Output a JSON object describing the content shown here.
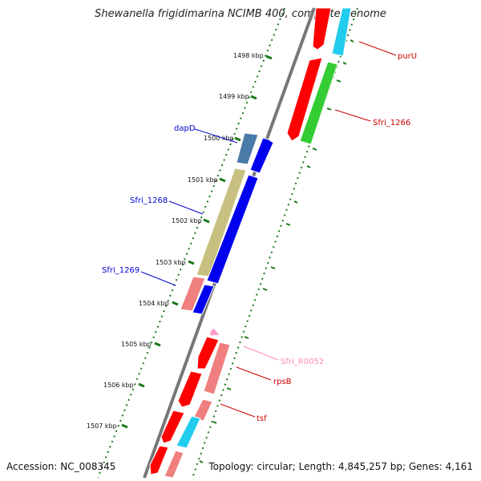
{
  "title": "Shewanella frigidimarina NCIMB 400, complete genome",
  "footer": {
    "accession": "Accession: NC_008345",
    "info": "Topology: circular; Length: 4,845,257 bp; Genes: 4,161"
  },
  "ticks": [
    "1498 kbp",
    "1499 kbp",
    "1500 kbp",
    "1501 kbp",
    "1502 kbp",
    "1503 kbp",
    "1504 kbp",
    "1505 kbp",
    "1506 kbp",
    "1507 kbp"
  ],
  "gene_labels": [
    {
      "text": "purU",
      "color": "#cc0000"
    },
    {
      "text": "Sfri_1266",
      "color": "#cc0000"
    },
    {
      "text": "dapD",
      "color": "#0000cc"
    },
    {
      "text": "Sfri_1268",
      "color": "#0000cc"
    },
    {
      "text": "Sfri_1269",
      "color": "#0000cc"
    },
    {
      "text": "Sfri_R0052",
      "color": "#ff88bb"
    },
    {
      "text": "rpsB",
      "color": "#cc0000"
    },
    {
      "text": "tsf",
      "color": "#cc0000"
    }
  ],
  "colors": {
    "backbone": "#777777",
    "tick_mark": "#1a7a1a",
    "red": "#ff0000",
    "blue": "#0000ee",
    "cyan": "#22ccee",
    "green": "#33cc33",
    "salmon": "#f08080",
    "olive": "#c8c080",
    "steel": "#4a7aa8",
    "pink": "#ff99cc"
  }
}
